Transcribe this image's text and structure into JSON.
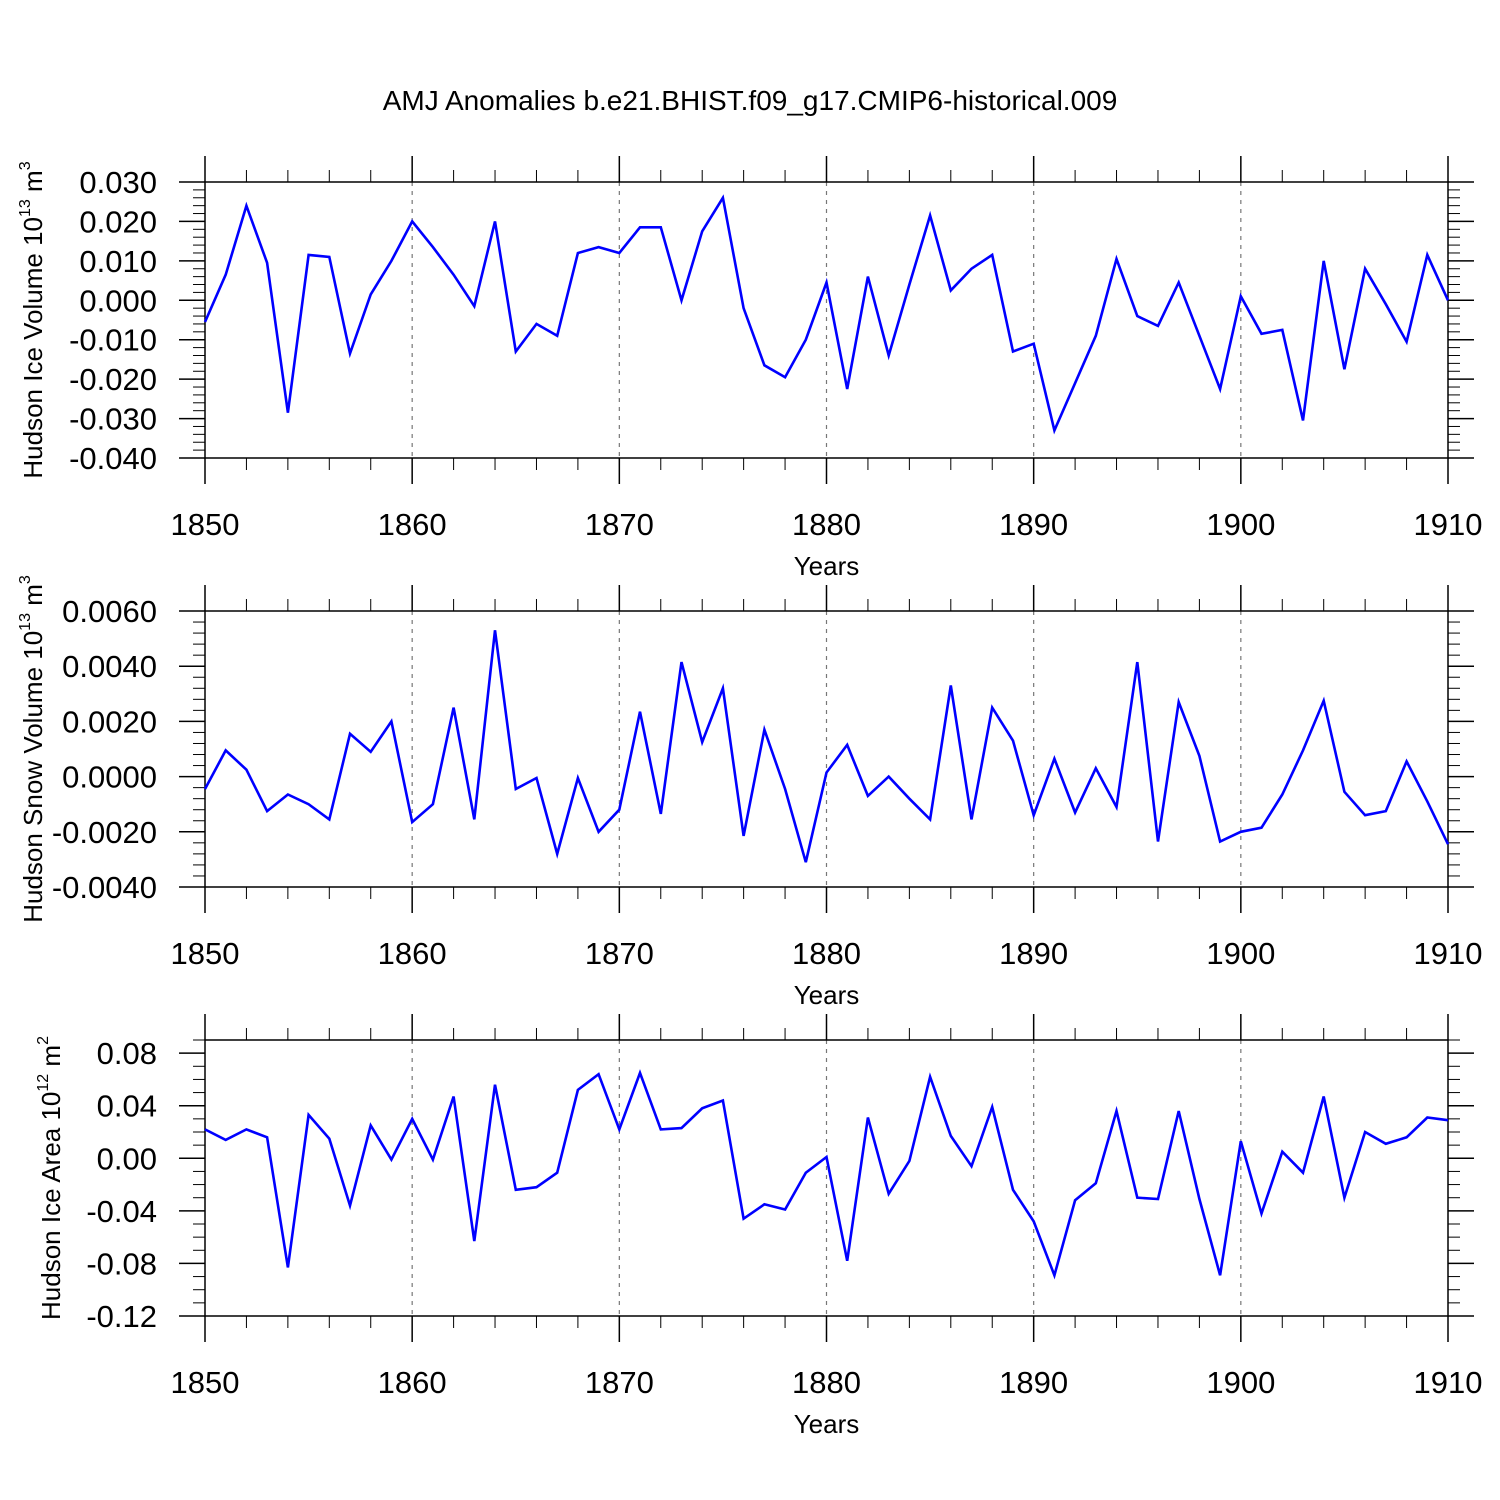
{
  "chart_data": {
    "title": "AMJ Anomalies b.e21.BHIST.f09_g17.CMIP6-historical.009",
    "line_color": "#0000ff",
    "panels": [
      {
        "type": "line",
        "ylabel": "Hudson Ice Volume 10",
        "yunit_exp": "13",
        "yunit_base": " m",
        "yunit_pow": "3",
        "xlabel": "Years",
        "xlim": [
          1850,
          1910
        ],
        "ylim": [
          -0.04,
          0.03
        ],
        "x_ticks": [
          1850,
          1860,
          1870,
          1880,
          1890,
          1900,
          1910
        ],
        "x_tick_labels": [
          "1850",
          "1860",
          "1870",
          "1880",
          "1890",
          "1900",
          "1910"
        ],
        "y_ticks": [
          -0.04,
          -0.03,
          -0.02,
          -0.01,
          0.0,
          0.01,
          0.02,
          0.03
        ],
        "y_tick_labels": [
          "-0.040",
          "-0.030",
          "-0.020",
          "-0.010",
          "0.000",
          "0.010",
          "0.020",
          "0.030"
        ],
        "y_minor_step": 0.002,
        "x": [
          1850,
          1851,
          1852,
          1853,
          1854,
          1855,
          1856,
          1857,
          1858,
          1859,
          1860,
          1861,
          1862,
          1863,
          1864,
          1865,
          1866,
          1867,
          1868,
          1869,
          1870,
          1871,
          1872,
          1873,
          1874,
          1875,
          1876,
          1877,
          1878,
          1879,
          1880,
          1881,
          1882,
          1883,
          1884,
          1885,
          1886,
          1887,
          1888,
          1889,
          1890,
          1891,
          1892,
          1893,
          1894,
          1895,
          1896,
          1897,
          1898,
          1899,
          1900,
          1901,
          1902,
          1903,
          1904,
          1905,
          1906,
          1907,
          1908,
          1909,
          1910
        ],
        "y": [
          -0.0055,
          0.0065,
          0.024,
          0.0095,
          -0.0285,
          0.0115,
          0.011,
          -0.0135,
          0.0015,
          0.01,
          0.02,
          0.0135,
          0.0065,
          -0.0015,
          0.02,
          -0.013,
          -0.006,
          -0.009,
          0.012,
          0.0135,
          0.012,
          0.0185,
          0.0185,
          0.0,
          0.0175,
          0.026,
          -0.002,
          -0.0165,
          -0.0195,
          -0.01,
          0.0045,
          -0.0225,
          0.006,
          -0.014,
          0.004,
          0.0215,
          0.0025,
          0.008,
          0.0115,
          -0.013,
          -0.011,
          -0.033,
          -0.021,
          -0.009,
          0.0105,
          -0.004,
          -0.0065,
          0.0045,
          -0.009,
          -0.0225,
          0.001,
          -0.0085,
          -0.0075,
          -0.0305,
          0.01,
          -0.0175,
          0.008,
          -0.001,
          -0.0105,
          0.0115,
          0.0
        ]
      },
      {
        "type": "line",
        "ylabel": "Hudson Snow Volume 10",
        "yunit_exp": "13",
        "yunit_base": " m",
        "yunit_pow": "3",
        "xlabel": "Years",
        "xlim": [
          1850,
          1910
        ],
        "ylim": [
          -0.004,
          0.006
        ],
        "x_ticks": [
          1850,
          1860,
          1870,
          1880,
          1890,
          1900,
          1910
        ],
        "x_tick_labels": [
          "1850",
          "1860",
          "1870",
          "1880",
          "1890",
          "1900",
          "1910"
        ],
        "y_ticks": [
          -0.004,
          -0.002,
          0.0,
          0.002,
          0.004,
          0.006
        ],
        "y_tick_labels": [
          "-0.0040",
          "-0.0020",
          "0.0000",
          "0.0020",
          "0.0040",
          "0.0060"
        ],
        "y_minor_step": 0.0004,
        "x": [
          1850,
          1851,
          1852,
          1853,
          1854,
          1855,
          1856,
          1857,
          1858,
          1859,
          1860,
          1861,
          1862,
          1863,
          1864,
          1865,
          1866,
          1867,
          1868,
          1869,
          1870,
          1871,
          1872,
          1873,
          1874,
          1875,
          1876,
          1877,
          1878,
          1879,
          1880,
          1881,
          1882,
          1883,
          1884,
          1885,
          1886,
          1887,
          1888,
          1889,
          1890,
          1891,
          1892,
          1893,
          1894,
          1895,
          1896,
          1897,
          1898,
          1899,
          1900,
          1901,
          1902,
          1903,
          1904,
          1905,
          1906,
          1907,
          1908,
          1909,
          1910
        ],
        "y": [
          -0.00045,
          0.00095,
          0.00025,
          -0.00125,
          -0.00065,
          -0.001,
          -0.00155,
          0.00155,
          0.0009,
          0.002,
          -0.00165,
          -0.001,
          0.0025,
          -0.00155,
          0.0053,
          -0.00045,
          -5e-05,
          -0.0028,
          -5e-05,
          -0.002,
          -0.0012,
          0.00235,
          -0.00135,
          0.00415,
          0.00125,
          0.0032,
          -0.00215,
          0.0017,
          -0.00045,
          -0.0031,
          0.00015,
          0.00115,
          -0.0007,
          0.0,
          -0.0008,
          -0.00155,
          0.0033,
          -0.00155,
          0.0025,
          0.0013,
          -0.0014,
          0.00065,
          -0.0013,
          0.0003,
          -0.0011,
          0.00415,
          -0.00235,
          0.0027,
          0.00075,
          -0.00235,
          -0.002,
          -0.00185,
          -0.00065,
          0.00095,
          0.00275,
          -0.00055,
          -0.0014,
          -0.00125,
          0.00055,
          -0.0009,
          -0.00245
        ]
      },
      {
        "type": "line",
        "ylabel": "Hudson Ice Area 10",
        "yunit_exp": "12",
        "yunit_base": " m",
        "yunit_pow": "2",
        "xlabel": "Years",
        "xlim": [
          1850,
          1910
        ],
        "ylim": [
          -0.12,
          0.09
        ],
        "x_ticks": [
          1850,
          1860,
          1870,
          1880,
          1890,
          1900,
          1910
        ],
        "x_tick_labels": [
          "1850",
          "1860",
          "1870",
          "1880",
          "1890",
          "1900",
          "1910"
        ],
        "y_ticks": [
          -0.12,
          -0.08,
          -0.04,
          0.0,
          0.04,
          0.08
        ],
        "y_tick_labels": [
          "-0.12",
          "-0.08",
          "-0.04",
          "0.00",
          "0.04",
          "0.08"
        ],
        "y_minor_step": 0.01,
        "x": [
          1850,
          1851,
          1852,
          1853,
          1854,
          1855,
          1856,
          1857,
          1858,
          1859,
          1860,
          1861,
          1862,
          1863,
          1864,
          1865,
          1866,
          1867,
          1868,
          1869,
          1870,
          1871,
          1872,
          1873,
          1874,
          1875,
          1876,
          1877,
          1878,
          1879,
          1880,
          1881,
          1882,
          1883,
          1884,
          1885,
          1886,
          1887,
          1888,
          1889,
          1890,
          1891,
          1892,
          1893,
          1894,
          1895,
          1896,
          1897,
          1898,
          1899,
          1900,
          1901,
          1902,
          1903,
          1904,
          1905,
          1906,
          1907,
          1908,
          1909,
          1910
        ],
        "y": [
          0.022,
          0.014,
          0.022,
          0.016,
          -0.083,
          0.033,
          0.015,
          -0.036,
          0.025,
          -0.001,
          0.03,
          -0.001,
          0.047,
          -0.063,
          0.056,
          -0.024,
          -0.022,
          -0.011,
          0.052,
          0.064,
          0.022,
          0.065,
          0.022,
          0.023,
          0.038,
          0.044,
          -0.046,
          -0.035,
          -0.039,
          -0.011,
          0.001,
          -0.078,
          0.031,
          -0.027,
          -0.002,
          0.062,
          0.017,
          -0.006,
          0.039,
          -0.024,
          -0.048,
          -0.089,
          -0.032,
          -0.019,
          0.036,
          -0.03,
          -0.031,
          0.036,
          -0.031,
          -0.089,
          0.013,
          -0.042,
          0.005,
          -0.011,
          0.047,
          -0.03,
          0.02,
          0.011,
          0.016,
          0.031,
          0.029
        ]
      }
    ]
  }
}
